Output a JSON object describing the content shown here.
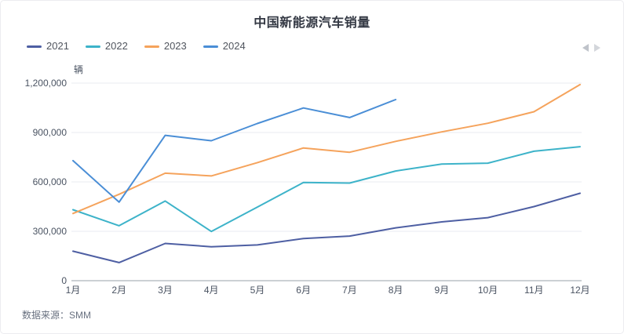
{
  "header": {
    "title": "中国新能源汽车销量"
  },
  "chart_data": {
    "type": "line",
    "title": "中国新能源汽车销量",
    "unit_label": "辆",
    "categories": [
      "1月",
      "2月",
      "3月",
      "4月",
      "5月",
      "6月",
      "7月",
      "8月",
      "9月",
      "10月",
      "11月",
      "12月"
    ],
    "series": [
      {
        "name": "2021",
        "color": "#4e5fa3",
        "values": [
          179000,
          110000,
          226000,
          206000,
          217000,
          256000,
          271000,
          321000,
          357000,
          383000,
          450000,
          531000
        ]
      },
      {
        "name": "2022",
        "color": "#3db3c9",
        "values": [
          431000,
          334000,
          484000,
          299000,
          447000,
          596000,
          593000,
          666000,
          708000,
          714000,
          786000,
          814000
        ]
      },
      {
        "name": "2023",
        "color": "#f5a35c",
        "values": [
          408000,
          525000,
          653000,
          636000,
          717000,
          806000,
          780000,
          846000,
          904000,
          956000,
          1026000,
          1191000
        ]
      },
      {
        "name": "2024",
        "color": "#4a8ed6",
        "values": [
          729000,
          477000,
          883000,
          850000,
          955000,
          1049000,
          991000,
          1100000
        ]
      }
    ],
    "ylim": [
      0,
      1200000
    ],
    "yticks": [
      0,
      300000,
      600000,
      900000,
      1200000
    ],
    "ytick_labels": [
      "0",
      "300,000",
      "600,000",
      "900,000",
      "1,200,000"
    ],
    "grid": true,
    "legend_position": "top-left"
  },
  "legend_nav": {
    "prev_icon": "left-triangle",
    "next_icon": "right-triangle"
  },
  "source": {
    "text": "数据来源：SMM"
  },
  "colors": {
    "grid_line": "#e9ebf0",
    "axis_line": "#9aa0a8",
    "tick_text": "#4a5362",
    "title_text": "#333843",
    "legend_text": "#50555e",
    "source_text": "#697180",
    "card_border": "#ececf0"
  }
}
